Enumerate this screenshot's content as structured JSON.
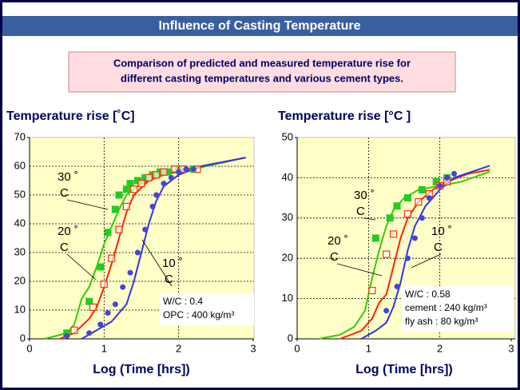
{
  "title": "Influence of Casting Temperature",
  "subtitle": [
    "Comparison of predicted and measured temperature rise for",
    "different casting temperatures and various cement types."
  ],
  "chart_data": [
    {
      "type": "line",
      "ylabel": "Temperature rise [˚C]",
      "xlabel": "Log (Time [hrs])",
      "xlim": [
        0,
        3
      ],
      "ylim": [
        0,
        70
      ],
      "xticks": [
        0,
        1,
        2,
        3
      ],
      "yticks": [
        0,
        10,
        20,
        30,
        40,
        50,
        60,
        70
      ],
      "grid": true,
      "annotations": [
        {
          "lines": [
            "30 ˚",
            "C"
          ]
        },
        {
          "lines": [
            "20 ˚",
            "C"
          ]
        },
        {
          "lines": [
            "10 ˚",
            "C"
          ]
        }
      ],
      "notes": [
        "W/C : 0.4",
        "OPC : 400 kg/m³"
      ],
      "series": [
        {
          "color": "#33cc00",
          "x": [
            0.2,
            0.5,
            0.6,
            0.7,
            0.8,
            0.9,
            1.0,
            1.1,
            1.2,
            1.3,
            1.5,
            1.8,
            2.2,
            2.9
          ],
          "values": [
            0,
            2,
            5,
            14,
            18,
            25,
            33,
            39,
            45,
            50,
            54,
            57,
            59,
            63
          ]
        },
        {
          "color": "#ff2200",
          "x": [
            0.4,
            0.6,
            0.8,
            0.9,
            1.0,
            1.1,
            1.2,
            1.3,
            1.4,
            1.6,
            1.9,
            2.3,
            2.9
          ],
          "values": [
            0,
            2,
            7,
            11,
            18,
            26,
            35,
            44,
            50,
            55,
            58,
            60,
            63
          ]
        },
        {
          "color": "#3333ee",
          "x": [
            0.7,
            0.9,
            1.1,
            1.3,
            1.4,
            1.5,
            1.6,
            1.7,
            1.8,
            2.0,
            2.3,
            2.9
          ],
          "values": [
            0,
            3,
            6,
            12,
            20,
            30,
            40,
            48,
            53,
            57,
            60,
            63
          ]
        },
        {
          "color": "#22cc22",
          "marker": "square",
          "x": [
            0.5,
            0.8,
            0.95,
            1.05,
            1.15,
            1.2,
            1.3,
            1.35,
            1.45,
            1.55,
            1.65,
            1.75,
            1.85,
            2.0,
            2.2
          ],
          "values": [
            2,
            13,
            25,
            37,
            45,
            50,
            52,
            54,
            55,
            56,
            57,
            58,
            58,
            59,
            59
          ]
        },
        {
          "color": "#ff3300",
          "marker": "open-square",
          "x": [
            0.6,
            0.85,
            1.0,
            1.1,
            1.2,
            1.3,
            1.4,
            1.5,
            1.6,
            1.7,
            1.8,
            1.95,
            2.05,
            2.25
          ],
          "values": [
            3,
            11,
            19,
            28,
            38,
            46,
            52,
            54,
            56,
            57,
            58,
            59,
            59,
            59
          ]
        },
        {
          "color": "#4444dd",
          "marker": "circle",
          "x": [
            0.5,
            0.8,
            0.95,
            1.05,
            1.15,
            1.25,
            1.35,
            1.45,
            1.55,
            1.65,
            1.7,
            1.8,
            1.9,
            2.0,
            2.1,
            2.2
          ],
          "values": [
            1,
            2,
            5,
            9,
            12,
            18,
            23,
            30,
            38,
            46,
            50,
            54,
            56,
            58,
            59,
            59
          ]
        }
      ]
    },
    {
      "type": "line",
      "ylabel": "Temperature rise [°C ]",
      "xlabel": "Log (Time [hrs])",
      "xlim": [
        0,
        3
      ],
      "ylim": [
        0,
        50
      ],
      "xticks": [
        0,
        1,
        2,
        3
      ],
      "yticks": [
        0,
        10,
        20,
        30,
        40,
        50
      ],
      "grid": true,
      "annotations": [
        {
          "lines": [
            "30 ˚",
            "C"
          ]
        },
        {
          "lines": [
            "20 ˚",
            "C"
          ]
        },
        {
          "lines": [
            "10 ˚",
            "C"
          ]
        }
      ],
      "notes": [
        "W/C : 0.58",
        "cement : 240 kg/m³",
        "fly ash : 80 kg/m³"
      ],
      "series": [
        {
          "color": "#33cc00",
          "x": [
            0.3,
            0.6,
            0.8,
            0.95,
            1.05,
            1.15,
            1.25,
            1.35,
            1.5,
            1.7,
            2.0,
            2.3,
            2.7
          ],
          "values": [
            0,
            1,
            3,
            7,
            15,
            22,
            28,
            32,
            35,
            37,
            38,
            39,
            41.5
          ]
        },
        {
          "color": "#ff2200",
          "x": [
            0.6,
            0.9,
            1.05,
            1.15,
            1.25,
            1.35,
            1.45,
            1.55,
            1.7,
            1.9,
            2.1,
            2.4,
            2.7
          ],
          "values": [
            0,
            2,
            5,
            9,
            11,
            18,
            25,
            30,
            34,
            37,
            39,
            41,
            42
          ]
        },
        {
          "color": "#3333ee",
          "x": [
            0.9,
            1.1,
            1.25,
            1.35,
            1.45,
            1.55,
            1.65,
            1.8,
            2.0,
            2.2,
            2.45,
            2.7
          ],
          "values": [
            0,
            2,
            4,
            8,
            14,
            22,
            28,
            33,
            37,
            40,
            41.5,
            43
          ]
        },
        {
          "color": "#22cc22",
          "marker": "square",
          "x": [
            1.1,
            1.3,
            1.4,
            1.55,
            1.75,
            1.95,
            2.1
          ],
          "values": [
            25,
            30,
            33,
            35,
            37,
            39,
            40
          ]
        },
        {
          "color": "#ff3300",
          "marker": "open-square",
          "x": [
            1.05,
            1.25,
            1.35,
            1.55,
            1.7,
            1.85,
            2.0,
            2.1
          ],
          "values": [
            12,
            21,
            26,
            31,
            34,
            36,
            38,
            39
          ]
        },
        {
          "color": "#4444dd",
          "marker": "circle",
          "x": [
            1.25,
            1.4,
            1.55,
            1.65,
            1.75,
            1.85,
            2.0,
            2.1,
            2.2
          ],
          "values": [
            7,
            13,
            20,
            25,
            30,
            35,
            38,
            40,
            41
          ]
        }
      ]
    }
  ]
}
